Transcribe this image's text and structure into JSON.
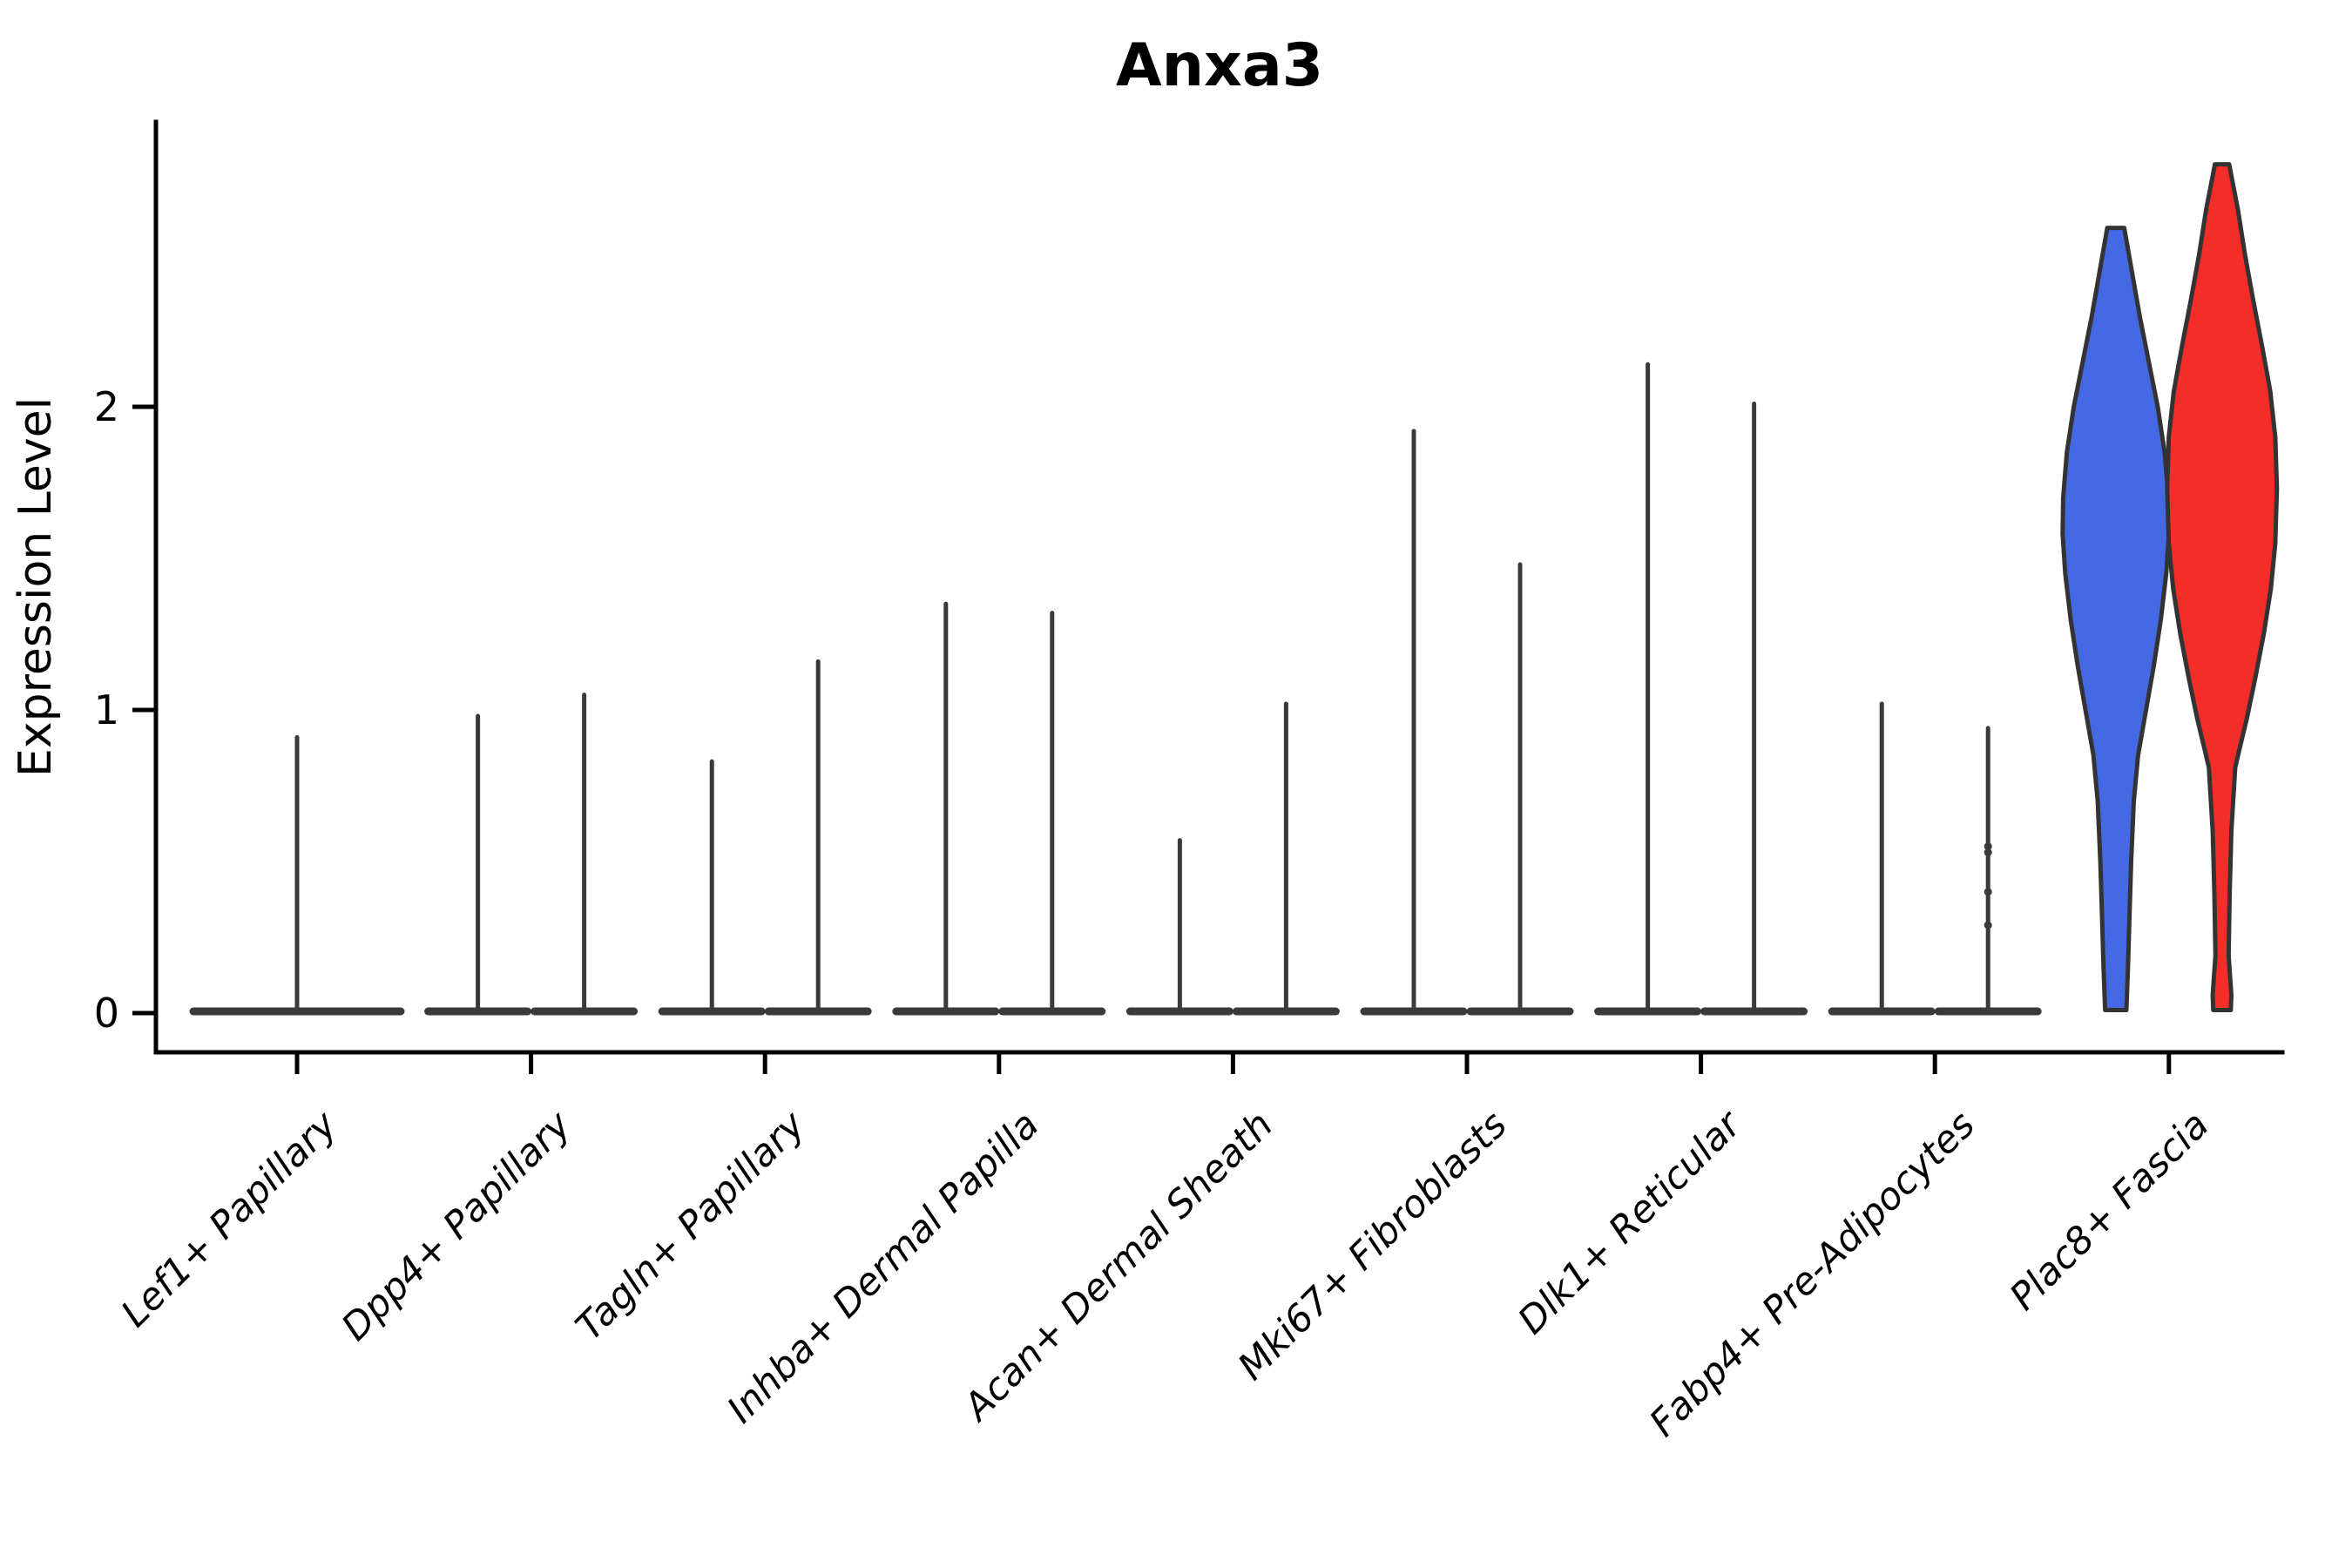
{
  "chart_data": {
    "type": "violin",
    "title": "Anxa3",
    "ylabel": "Expression Level",
    "xlabel": "",
    "yticks": [
      0,
      1,
      2
    ],
    "ylim": [
      0,
      2.94
    ],
    "grid": false,
    "legend": "none",
    "palette": {
      "blue": "#4569E5",
      "red": "#F52D28",
      "collapsed": "#3A3A3A",
      "outline": "#333333",
      "axis": "#000000"
    },
    "categories": [
      "Lef1+ Papillary",
      "Dpp4+ Papillary",
      "Tagln+ Papillary",
      "Inhba+ Dermal Papilla",
      "Acan+ Dermal Sheath",
      "Mki67+ Fibroblasts",
      "Dlk1+ Reticular",
      "Fabp4+ Pre-Adipocytes",
      "Plac8+ Fascia"
    ],
    "violins": [
      {
        "category": "Lef1+ Papillary",
        "items": [
          {
            "pos": "center",
            "style": "collapsed",
            "max": 0.91
          }
        ]
      },
      {
        "category": "Dpp4+ Papillary",
        "items": [
          {
            "pos": "left",
            "style": "collapsed",
            "max": 0.98
          },
          {
            "pos": "right",
            "style": "collapsed",
            "max": 1.05
          }
        ]
      },
      {
        "category": "Tagln+ Papillary",
        "items": [
          {
            "pos": "left",
            "style": "collapsed",
            "max": 0.83
          },
          {
            "pos": "right",
            "style": "collapsed",
            "max": 1.16
          }
        ]
      },
      {
        "category": "Inhba+ Dermal Papilla",
        "items": [
          {
            "pos": "left",
            "style": "collapsed",
            "max": 1.35
          },
          {
            "pos": "right",
            "style": "collapsed",
            "max": 1.32
          }
        ]
      },
      {
        "category": "Acan+ Dermal Sheath",
        "items": [
          {
            "pos": "left",
            "style": "collapsed",
            "max": 0.57
          },
          {
            "pos": "right",
            "style": "collapsed",
            "max": 1.02
          }
        ]
      },
      {
        "category": "Mki67+ Fibroblasts",
        "items": [
          {
            "pos": "left",
            "style": "collapsed",
            "max": 1.92
          },
          {
            "pos": "right",
            "style": "collapsed",
            "max": 1.48
          }
        ]
      },
      {
        "category": "Dlk1+ Reticular",
        "items": [
          {
            "pos": "left",
            "style": "collapsed",
            "max": 2.14
          },
          {
            "pos": "right",
            "style": "collapsed",
            "max": 2.01
          }
        ]
      },
      {
        "category": "Fabp4+ Pre-Adipocytes",
        "items": [
          {
            "pos": "left",
            "style": "collapsed",
            "max": 1.02
          },
          {
            "pos": "right",
            "style": "collapsed",
            "max": 0.94,
            "points": [
              0.55,
              0.53,
              0.4,
              0.29
            ]
          }
        ]
      },
      {
        "category": "Plac8+ Fascia",
        "items": [
          {
            "pos": "left",
            "style": "full",
            "color_key": "blue",
            "max": 2.59,
            "min": 0.0,
            "profile": [
              [
                2.59,
                0.16
              ],
              [
                2.45,
                0.3
              ],
              [
                2.3,
                0.45
              ],
              [
                2.15,
                0.62
              ],
              [
                2.0,
                0.79
              ],
              [
                1.85,
                0.92
              ],
              [
                1.7,
                0.99
              ],
              [
                1.58,
                1.0
              ],
              [
                1.45,
                0.95
              ],
              [
                1.3,
                0.85
              ],
              [
                1.15,
                0.72
              ],
              [
                1.0,
                0.57
              ],
              [
                0.85,
                0.42
              ],
              [
                0.7,
                0.34
              ],
              [
                0.5,
                0.29
              ],
              [
                0.33,
                0.26
              ],
              [
                0.15,
                0.23
              ],
              [
                0.01,
                0.2
              ]
            ]
          },
          {
            "pos": "right",
            "style": "full",
            "color_key": "red",
            "max": 2.8,
            "min": 0.0,
            "profile": [
              [
                2.8,
                0.13
              ],
              [
                2.65,
                0.29
              ],
              [
                2.5,
                0.42
              ],
              [
                2.35,
                0.57
              ],
              [
                2.2,
                0.73
              ],
              [
                2.05,
                0.88
              ],
              [
                1.9,
                0.97
              ],
              [
                1.73,
                1.0
              ],
              [
                1.55,
                0.97
              ],
              [
                1.4,
                0.89
              ],
              [
                1.25,
                0.76
              ],
              [
                1.1,
                0.6
              ],
              [
                0.97,
                0.45
              ],
              [
                0.88,
                0.33
              ],
              [
                0.81,
                0.24
              ],
              [
                0.6,
                0.17
              ],
              [
                0.4,
                0.14
              ],
              [
                0.19,
                0.12
              ],
              [
                0.06,
                0.17
              ],
              [
                0.01,
                0.16
              ]
            ]
          }
        ]
      }
    ]
  }
}
